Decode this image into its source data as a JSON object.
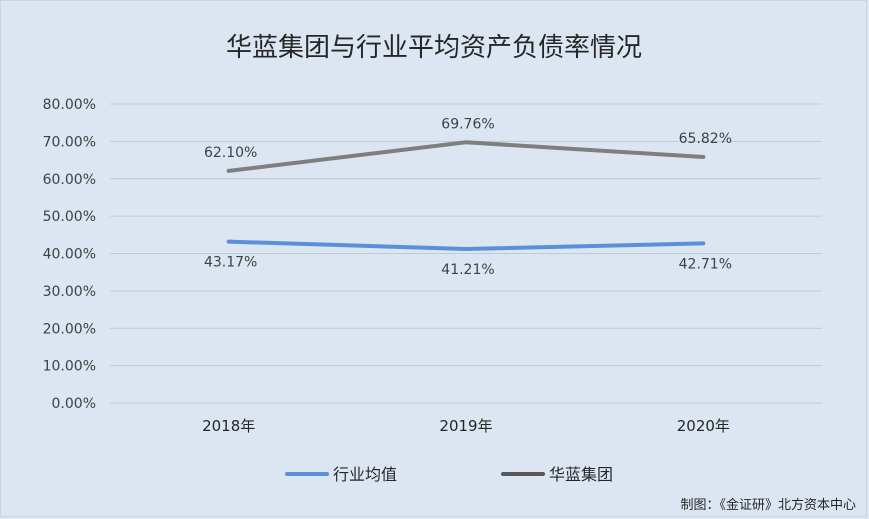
{
  "chart_data": {
    "type": "line",
    "title": "华蓝集团与行业平均资产负债率情况",
    "categories": [
      "2018年",
      "2019年",
      "2020年"
    ],
    "series": [
      {
        "name": "行业均值",
        "values": [
          43.17,
          41.21,
          42.71
        ],
        "labels": [
          "43.17%",
          "41.21%",
          "42.71%"
        ],
        "color": "#5b8fd9"
      },
      {
        "name": "华蓝集团",
        "values": [
          62.1,
          69.76,
          65.82
        ],
        "labels": [
          "62.10%",
          "69.76%",
          "65.82%"
        ],
        "color": "#7f7f7f"
      }
    ],
    "ylim": [
      0,
      80
    ],
    "yticks": [
      "0.00%",
      "10.00%",
      "20.00%",
      "30.00%",
      "40.00%",
      "50.00%",
      "60.00%",
      "70.00%",
      "80.00%"
    ],
    "grid": true,
    "legend_position": "bottom",
    "legend_swatch_colors": [
      "#5b8fd9",
      "#595959"
    ]
  },
  "credit": "制图：《金证研》北方资本中心"
}
